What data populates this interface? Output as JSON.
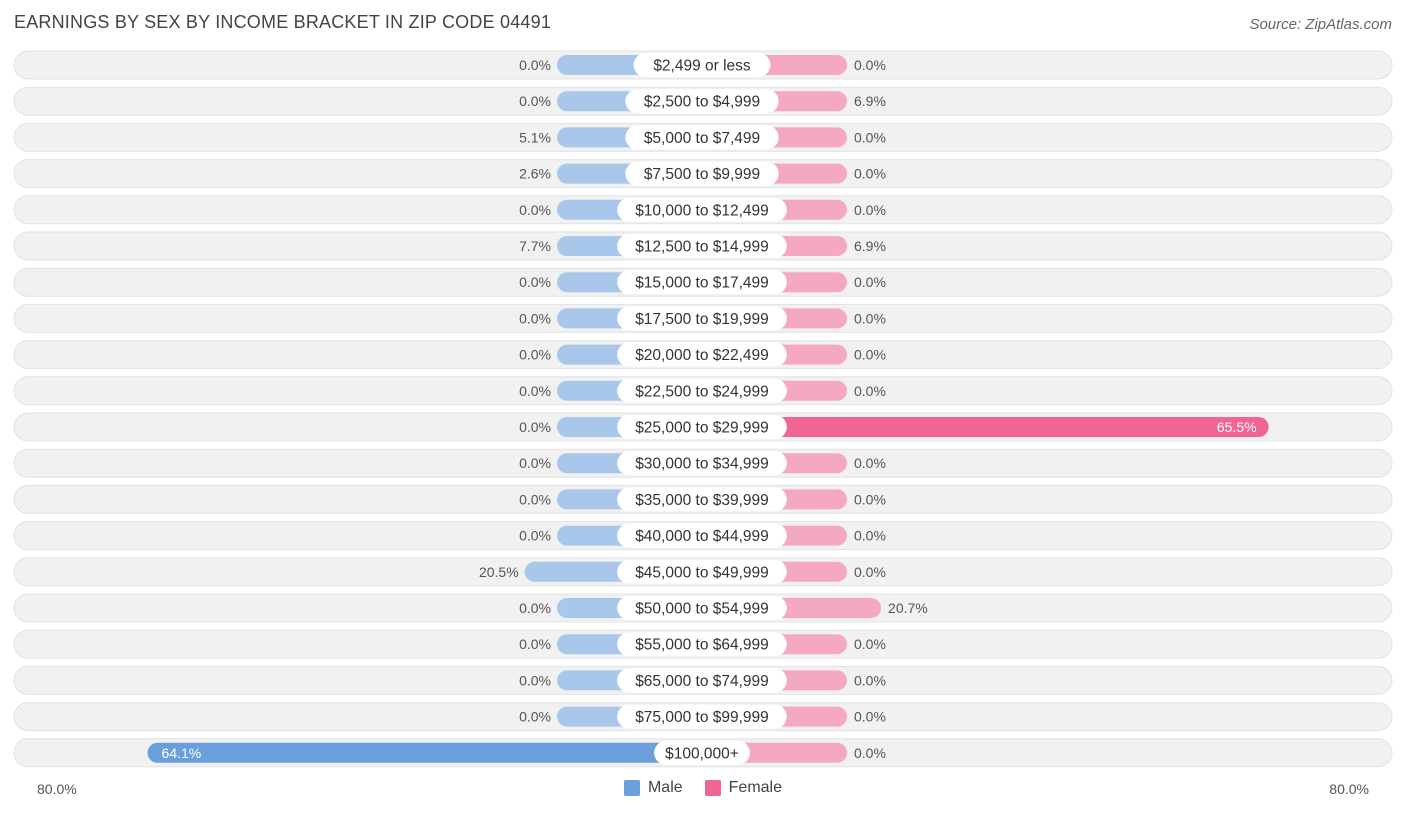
{
  "title": "EARNINGS BY SEX BY INCOME BRACKET IN ZIP CODE 04491",
  "source": "Source: ZipAtlas.com",
  "colors": {
    "male_light": "#a9c7ea",
    "male_strong": "#6a9fdb",
    "female_light": "#f5a9c1",
    "female_strong": "#f06592",
    "row_bg": "#f1f1f1"
  },
  "legend": {
    "male": "Male",
    "female": "Female"
  },
  "axis": {
    "left_label": "80.0%",
    "right_label": "80.0%"
  },
  "chart_data": {
    "type": "bar",
    "orientation": "horizontal-diverging",
    "title": "EARNINGS BY SEX BY INCOME BRACKET IN ZIP CODE 04491",
    "xlim": [
      -80,
      80
    ],
    "series": [
      {
        "name": "Male",
        "values": [
          0.0,
          0.0,
          5.1,
          2.6,
          0.0,
          7.7,
          0.0,
          0.0,
          0.0,
          0.0,
          0.0,
          0.0,
          0.0,
          0.0,
          20.5,
          0.0,
          0.0,
          0.0,
          0.0,
          64.1
        ]
      },
      {
        "name": "Female",
        "values": [
          0.0,
          6.9,
          0.0,
          0.0,
          0.0,
          6.9,
          0.0,
          0.0,
          0.0,
          0.0,
          65.5,
          0.0,
          0.0,
          0.0,
          0.0,
          20.7,
          0.0,
          0.0,
          0.0,
          0.0
        ]
      }
    ],
    "categories": [
      "$2,499 or less",
      "$2,500 to $4,999",
      "$5,000 to $7,499",
      "$7,500 to $9,999",
      "$10,000 to $12,499",
      "$12,500 to $14,999",
      "$15,000 to $17,499",
      "$17,500 to $19,999",
      "$20,000 to $22,499",
      "$22,500 to $24,999",
      "$25,000 to $29,999",
      "$30,000 to $34,999",
      "$35,000 to $39,999",
      "$40,000 to $44,999",
      "$45,000 to $49,999",
      "$50,000 to $54,999",
      "$55,000 to $64,999",
      "$65,000 to $74,999",
      "$75,000 to $99,999",
      "$100,000+"
    ],
    "male_labels": [
      "0.0%",
      "0.0%",
      "5.1%",
      "2.6%",
      "0.0%",
      "7.7%",
      "0.0%",
      "0.0%",
      "0.0%",
      "0.0%",
      "0.0%",
      "0.0%",
      "0.0%",
      "0.0%",
      "20.5%",
      "0.0%",
      "0.0%",
      "0.0%",
      "0.0%",
      "64.1%"
    ],
    "female_labels": [
      "0.0%",
      "6.9%",
      "0.0%",
      "0.0%",
      "0.0%",
      "6.9%",
      "0.0%",
      "0.0%",
      "0.0%",
      "0.0%",
      "65.5%",
      "0.0%",
      "0.0%",
      "0.0%",
      "0.0%",
      "20.7%",
      "0.0%",
      "0.0%",
      "0.0%",
      "0.0%"
    ]
  }
}
